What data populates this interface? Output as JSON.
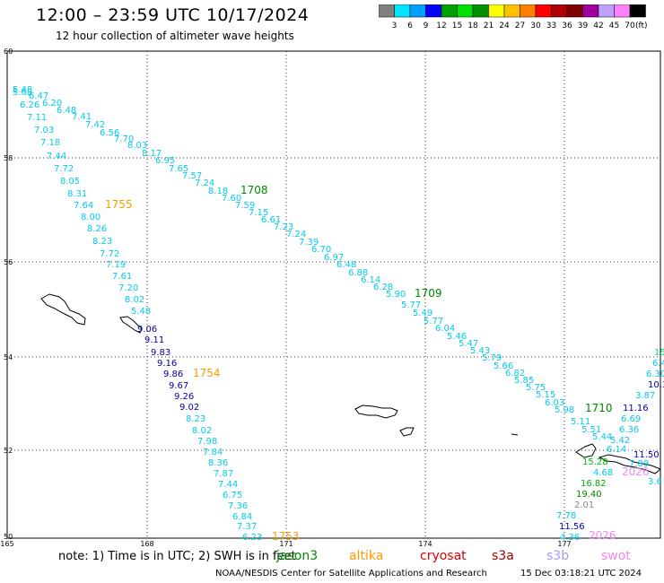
{
  "title": "12:00 – 23:59 UTC 10/17/2024",
  "subtitle": "12 hour collection of altimeter wave heights",
  "legend": {
    "unit": "(ft)",
    "colors": [
      "#808080",
      "#00e5ff",
      "#00a0ff",
      "#0000ff",
      "#00a000",
      "#00e000",
      "#009000",
      "#ffff00",
      "#ffc000",
      "#ff8000",
      "#ff0000",
      "#b00000",
      "#800000",
      "#a000a0",
      "#c0a0ff",
      "#ff80ff",
      "#000000"
    ],
    "labels": [
      "3",
      "6",
      "9",
      "12",
      "15",
      "18",
      "21",
      "24",
      "27",
      "30",
      "33",
      "36",
      "39",
      "42",
      "45",
      "70"
    ]
  },
  "axes": {
    "lat_labels": [
      "60",
      "58",
      "56",
      "54",
      "52",
      "50"
    ],
    "lon_labels": [
      "165",
      "168",
      "171",
      "174",
      "177"
    ]
  },
  "note": "note:  1) Time is in UTC;  2) SWH is in feet",
  "satellites": [
    {
      "name": "jason3",
      "color": "#008800"
    },
    {
      "name": "altika",
      "color": "#ff9900"
    },
    {
      "name": "cryosat",
      "color": "#dd0000"
    },
    {
      "name": "s3a",
      "color": "#990000"
    },
    {
      "name": "s3b",
      "color": "#a899ee"
    },
    {
      "name": "swot",
      "color": "#ee88ee"
    }
  ],
  "footer": "NOAA/NESDIS Center for Satellite Applications and Research",
  "footer_date": "15 Dec 03:18:21 UTC 2024",
  "track_times": [
    {
      "text": "1708",
      "color": "#008800"
    },
    {
      "text": "1709",
      "color": "#008800"
    },
    {
      "text": "1710",
      "color": "#008800"
    },
    {
      "text": "1755",
      "color": "#ff9900"
    },
    {
      "text": "1754",
      "color": "#ff9900"
    },
    {
      "text": "1753",
      "color": "#ff9900"
    },
    {
      "text": "2026",
      "color": "#ee88ee"
    },
    {
      "text": "2026",
      "color": "#ee88ee"
    }
  ],
  "wave_heights": [
    {
      "t": "5.48",
      "c": "#00ccee"
    },
    {
      "t": "5.68",
      "c": "#00ccee"
    },
    {
      "t": "6.47",
      "c": "#00ccee"
    },
    {
      "t": "6.20",
      "c": "#00ccee"
    },
    {
      "t": "6.26",
      "c": "#00ccee"
    },
    {
      "t": "6.48",
      "c": "#00ccee"
    },
    {
      "t": "7.41",
      "c": "#00ccee"
    },
    {
      "t": "7.11",
      "c": "#00ccee"
    },
    {
      "t": "7.42",
      "c": "#00ccee"
    },
    {
      "t": "6.56",
      "c": "#00ccee"
    },
    {
      "t": "7.03",
      "c": "#00ccee"
    },
    {
      "t": "7.70",
      "c": "#00ccee"
    },
    {
      "t": "8.03",
      "c": "#00ccee"
    },
    {
      "t": "7.18",
      "c": "#00ccee"
    },
    {
      "t": "8.17",
      "c": "#00ccee"
    },
    {
      "t": "6.95",
      "c": "#00ccee"
    },
    {
      "t": "7.44",
      "c": "#00ccee"
    },
    {
      "t": "7.65",
      "c": "#00ccee"
    },
    {
      "t": "7.72",
      "c": "#00ccee"
    },
    {
      "t": "7.57",
      "c": "#00ccee"
    },
    {
      "t": "7.24",
      "c": "#00ccee"
    },
    {
      "t": "8.05",
      "c": "#00ccee"
    },
    {
      "t": "8.18",
      "c": "#00ccee"
    },
    {
      "t": "7.60",
      "c": "#00ccee"
    },
    {
      "t": "8.31",
      "c": "#00ccee"
    },
    {
      "t": "7.59",
      "c": "#00ccee"
    },
    {
      "t": "7.64",
      "c": "#00ccee"
    },
    {
      "t": "7.15",
      "c": "#00ccee"
    },
    {
      "t": "8.00",
      "c": "#00ccee"
    },
    {
      "t": "6.61",
      "c": "#00ccee"
    },
    {
      "t": "7.23",
      "c": "#00ccee"
    },
    {
      "t": "8.26",
      "c": "#00ccee"
    },
    {
      "t": "7.24",
      "c": "#00ccee"
    },
    {
      "t": "8.23",
      "c": "#00ccee"
    },
    {
      "t": "7.39",
      "c": "#00ccee"
    },
    {
      "t": "6.70",
      "c": "#00ccee"
    },
    {
      "t": "7.72",
      "c": "#00ccee"
    },
    {
      "t": "6.97",
      "c": "#00ccee"
    },
    {
      "t": "7.19",
      "c": "#00ccee"
    },
    {
      "t": "6.48",
      "c": "#00ccee"
    },
    {
      "t": "6.88",
      "c": "#00ccee"
    },
    {
      "t": "7.61",
      "c": "#00ccee"
    },
    {
      "t": "6.14",
      "c": "#00ccee"
    },
    {
      "t": "7.20",
      "c": "#00ccee"
    },
    {
      "t": "6.28",
      "c": "#00ccee"
    },
    {
      "t": "8.02",
      "c": "#00ccee"
    },
    {
      "t": "5.90",
      "c": "#00ccee"
    },
    {
      "t": "5.77",
      "c": "#00ccee"
    },
    {
      "t": "5.49",
      "c": "#00ccee"
    },
    {
      "t": "5.48",
      "c": "#00ccee"
    },
    {
      "t": "5.77",
      "c": "#00ccee"
    },
    {
      "t": "9.06",
      "c": "#0000aa"
    },
    {
      "t": "6.04",
      "c": "#00ccee"
    },
    {
      "t": "9.11",
      "c": "#0000aa"
    },
    {
      "t": "5.46",
      "c": "#00ccee"
    },
    {
      "t": "5.47",
      "c": "#00ccee"
    },
    {
      "t": "9.83",
      "c": "#0000aa"
    },
    {
      "t": "5.43",
      "c": "#00ccee"
    },
    {
      "t": "5.79",
      "c": "#00ccee"
    },
    {
      "t": "9.16",
      "c": "#0000aa"
    },
    {
      "t": "5.66",
      "c": "#00ccee"
    },
    {
      "t": "9.86",
      "c": "#0000aa"
    },
    {
      "t": "6.82",
      "c": "#00ccee"
    },
    {
      "t": "9.67",
      "c": "#0000aa"
    },
    {
      "t": "5.85",
      "c": "#00ccee"
    },
    {
      "t": "5.75",
      "c": "#00ccee"
    },
    {
      "t": "9.26",
      "c": "#0000aa"
    },
    {
      "t": "5.15",
      "c": "#00ccee"
    },
    {
      "t": "9.02",
      "c": "#0000aa"
    },
    {
      "t": "6.03",
      "c": "#00ccee"
    },
    {
      "t": "5.98",
      "c": "#00ccee"
    },
    {
      "t": "8.23",
      "c": "#00ccee"
    },
    {
      "t": "5.11",
      "c": "#00ccee"
    },
    {
      "t": "8.02",
      "c": "#00ccee"
    },
    {
      "t": "5.51",
      "c": "#00ccee"
    },
    {
      "t": "5.44",
      "c": "#00ccee"
    },
    {
      "t": "7.98",
      "c": "#00ccee"
    },
    {
      "t": "7.84",
      "c": "#00ccee"
    },
    {
      "t": "8.36",
      "c": "#00ccee"
    },
    {
      "t": "7.87",
      "c": "#00ccee"
    },
    {
      "t": "7.44",
      "c": "#00ccee"
    },
    {
      "t": "6.75",
      "c": "#00ccee"
    },
    {
      "t": "7.36",
      "c": "#00ccee"
    },
    {
      "t": "6.84",
      "c": "#00ccee"
    },
    {
      "t": "7.37",
      "c": "#00ccee"
    },
    {
      "t": "6.23",
      "c": "#00ccee"
    },
    {
      "t": "15",
      "c": "#00ee66"
    },
    {
      "t": "6.4",
      "c": "#00ccee"
    },
    {
      "t": "6.30",
      "c": "#00ccee"
    },
    {
      "t": "10.30",
      "c": "#0000aa"
    },
    {
      "t": "3.87",
      "c": "#00ccee"
    },
    {
      "t": "11.16",
      "c": "#0000aa"
    },
    {
      "t": "6.69",
      "c": "#00ccee"
    },
    {
      "t": "6.36",
      "c": "#00ccee"
    },
    {
      "t": "5.42",
      "c": "#00ccee"
    },
    {
      "t": "6.14",
      "c": "#00ccee"
    },
    {
      "t": "11.50",
      "c": "#0000aa"
    },
    {
      "t": "7.89",
      "c": "#00ccee"
    },
    {
      "t": "15.28",
      "c": "#00bb00"
    },
    {
      "t": "4.68",
      "c": "#00ccee"
    },
    {
      "t": "16.82",
      "c": "#00aa00"
    },
    {
      "t": "19.40",
      "c": "#008800"
    },
    {
      "t": "2.01",
      "c": "#888888"
    },
    {
      "t": "7.78",
      "c": "#00ccee"
    },
    {
      "t": "11.56",
      "c": "#0000aa"
    },
    {
      "t": "4.36",
      "c": "#00ccee"
    },
    {
      "t": "3.6",
      "c": "#00ccee"
    }
  ]
}
